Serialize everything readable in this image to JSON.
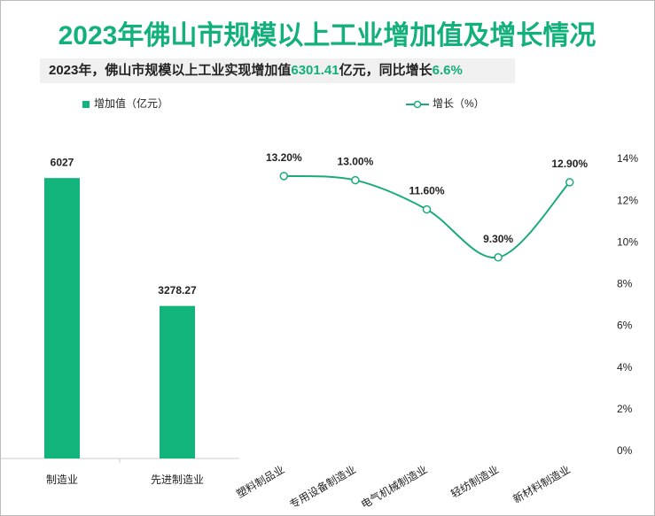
{
  "title": "2023年佛山市规模以上工业增加值及增长情况",
  "title_color": "#12b07a",
  "subtitle": [
    "2023年，佛山市规模以上工业实现增加值",
    "6301.41",
    "亿元，同比增长",
    "6.6%"
  ],
  "subtitle_highlight_color": "#12b07a",
  "chart_data": [
    {
      "type": "bar",
      "categories": [
        "制造业",
        "先进制造业"
      ],
      "series": [
        {
          "name": "增加值（亿元）",
          "color": "#12b47c",
          "values": [
            6027,
            3278.27
          ]
        }
      ],
      "ylim": [
        0,
        7000
      ]
    },
    {
      "type": "line",
      "categories": [
        "塑料制品业",
        "专用设备制造业",
        "电气机械制造业",
        "轻纺制造业",
        "新材料制造业"
      ],
      "series": [
        {
          "name": "增长（%）",
          "color": "#1aab7a",
          "axis": "y2",
          "values": [
            13.2,
            13.0,
            11.6,
            9.3,
            12.9
          ],
          "value_labels": [
            "13.20%",
            "13.00%",
            "11.60%",
            "9.30%",
            "12.90%"
          ]
        }
      ],
      "y2lim": [
        0,
        14
      ],
      "y2ticks": [
        {
          "value": 0,
          "label": "0%"
        },
        {
          "value": 2,
          "label": "2%"
        },
        {
          "value": 4,
          "label": "4%"
        },
        {
          "value": 6,
          "label": "6%"
        },
        {
          "value": 8,
          "label": "8%"
        },
        {
          "value": 10,
          "label": "10%"
        },
        {
          "value": 12,
          "label": "12%"
        },
        {
          "value": 14,
          "label": "14%"
        }
      ]
    }
  ]
}
